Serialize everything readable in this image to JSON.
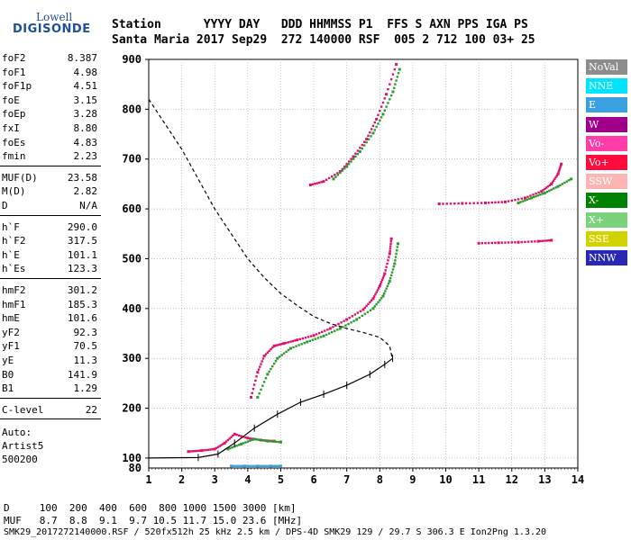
{
  "logo": {
    "line1": "Lowell",
    "line2": "DIGISONDE"
  },
  "header": {
    "row1": "Station      YYYY DAY   DDD HHMMSS P1  FFS S AXN PPS IGA PS",
    "row2": "Santa Maria 2017 Sep29  272 140000 RSF  005 2 712 100 03+ 25"
  },
  "params_group1": [
    {
      "key": "foF2",
      "value": "8.387"
    },
    {
      "key": "foF1",
      "value": "4.98"
    },
    {
      "key": "foF1p",
      "value": "4.51"
    },
    {
      "key": "foE",
      "value": "3.15"
    },
    {
      "key": "foEp",
      "value": "3.28"
    },
    {
      "key": "fxI",
      "value": "8.80"
    },
    {
      "key": "foEs",
      "value": "4.83"
    },
    {
      "key": "fmin",
      "value": "2.23"
    }
  ],
  "params_group2": [
    {
      "key": "MUF(D)",
      "value": "23.58"
    },
    {
      "key": "M(D)",
      "value": "2.82"
    },
    {
      "key": "D",
      "value": "N/A"
    }
  ],
  "params_group3": [
    {
      "key": "h`F",
      "value": "290.0"
    },
    {
      "key": "h`F2",
      "value": "317.5"
    },
    {
      "key": "h`E",
      "value": "101.1"
    },
    {
      "key": "h`Es",
      "value": "123.3"
    }
  ],
  "params_group4": [
    {
      "key": "hmF2",
      "value": "301.2"
    },
    {
      "key": "hmF1",
      "value": "185.3"
    },
    {
      "key": "hmE",
      "value": "101.6"
    },
    {
      "key": "yF2",
      "value": "92.3"
    },
    {
      "key": "yF1",
      "value": "70.5"
    },
    {
      "key": "yE",
      "value": "11.3"
    },
    {
      "key": "B0",
      "value": "141.9"
    },
    {
      "key": "B1",
      "value": "1.29"
    }
  ],
  "params_group5": [
    {
      "key": "C-level",
      "value": "22"
    }
  ],
  "auto": {
    "line1": "Auto:",
    "line2": "Artist5",
    "line3": "500200"
  },
  "legend": [
    {
      "label": "NoVal",
      "color": "#8c8c8c"
    },
    {
      "label": "NNE",
      "color": "#00e4ff"
    },
    {
      "label": "E",
      "color": "#3aa0e0"
    },
    {
      "label": "W",
      "color": "#a0008c"
    },
    {
      "label": "Vo-",
      "color": "#ff3ca8"
    },
    {
      "label": "Vo+",
      "color": "#ff0a3c"
    },
    {
      "label": "SSW",
      "color": "#ffb4b4"
    },
    {
      "label": "X-",
      "color": "#008200"
    },
    {
      "label": "X+",
      "color": "#7ad27a"
    },
    {
      "label": "SSE",
      "color": "#d2d200"
    },
    {
      "label": "NNW",
      "color": "#2828b4"
    }
  ],
  "bottom": {
    "row_d": "D     100  200  400  600  800 1000 1500 3000 [km]",
    "row_muf": "MUF   8.7  8.8  9.1  9.7 10.5 11.7 15.0 23.6 [MHz]",
    "footer": "SMK29_2017272140000.RSF / 520fx512h 25 kHz 2.5 km / DPS-4D SMK29 129 / 29.7 S 306.3 E Ion2Png 1.3.20"
  },
  "chart_data": {
    "type": "scatter",
    "title": "",
    "xlabel": "",
    "ylabel": "",
    "xlim": [
      1,
      14
    ],
    "ylim": [
      80,
      900
    ],
    "x_ticks": [
      1,
      2,
      3,
      4,
      5,
      6,
      7,
      8,
      9,
      10,
      11,
      12,
      13,
      14
    ],
    "y_ticks": [
      100,
      200,
      300,
      400,
      500,
      600,
      700,
      800,
      900
    ],
    "grid": true,
    "series": [
      {
        "key": "f_layer_o",
        "color": "#e0106a",
        "x": [
          4.1,
          4.3,
          4.5,
          4.8,
          5.1,
          5.5,
          6.0,
          6.5,
          7.0,
          7.5,
          7.8,
          8.0,
          8.15,
          8.3,
          8.35
        ],
        "y": [
          222,
          272,
          305,
          325,
          330,
          337,
          346,
          360,
          378,
          398,
          420,
          445,
          470,
          510,
          540
        ]
      },
      {
        "key": "f_layer_x",
        "color": "#2e9a2e",
        "x": [
          4.3,
          4.6,
          4.9,
          5.3,
          5.8,
          6.3,
          6.8,
          7.3,
          7.8,
          8.1,
          8.3,
          8.45,
          8.55
        ],
        "y": [
          222,
          268,
          300,
          320,
          333,
          345,
          360,
          378,
          400,
          425,
          455,
          490,
          530
        ]
      },
      {
        "key": "multi_o",
        "color": "#e0106a",
        "x": [
          5.9,
          6.3,
          6.8,
          7.2,
          7.6,
          7.9,
          8.2,
          8.5
        ],
        "y": [
          648,
          655,
          675,
          705,
          740,
          780,
          830,
          890
        ]
      },
      {
        "key": "multi_x",
        "color": "#2e9a2e",
        "x": [
          6.6,
          7.0,
          7.4,
          7.8,
          8.1,
          8.4,
          8.6
        ],
        "y": [
          660,
          685,
          715,
          752,
          790,
          835,
          880
        ]
      },
      {
        "key": "es_o",
        "color": "#e0106a",
        "x": [
          2.2,
          2.6,
          3.0,
          3.3,
          3.6,
          4.0,
          4.4,
          4.8
        ],
        "y": [
          113,
          115,
          118,
          130,
          148,
          140,
          136,
          134
        ]
      },
      {
        "key": "es_x",
        "color": "#2e9a2e",
        "x": [
          3.4,
          3.8,
          4.2,
          4.6,
          5.0
        ],
        "y": [
          118,
          128,
          138,
          134,
          132
        ]
      },
      {
        "key": "oblique_o",
        "color": "#e0106a",
        "x": [
          9.8,
          10.5,
          11.2,
          11.8,
          12.4,
          12.9,
          13.2,
          13.4,
          13.5
        ],
        "y": [
          610,
          611,
          612,
          614,
          622,
          635,
          650,
          670,
          690
        ]
      },
      {
        "key": "oblique_x",
        "color": "#2e9a2e",
        "x": [
          12.2,
          12.6,
          13.0,
          13.4,
          13.8
        ],
        "y": [
          612,
          622,
          632,
          645,
          660
        ]
      },
      {
        "key": "oblique_low",
        "color": "#e0106a",
        "x": [
          11.0,
          11.6,
          12.2,
          12.8,
          13.2
        ],
        "y": [
          531,
          532,
          533,
          535,
          537
        ]
      },
      {
        "key": "e_layer_w",
        "color": "#3aa0e0",
        "x": [
          3.5,
          3.9,
          4.3,
          4.7,
          5.0
        ],
        "y": [
          84,
          84,
          84,
          84,
          84
        ]
      }
    ],
    "profile": {
      "x": [
        1.0,
        2.5,
        3.1,
        3.6,
        4.2,
        4.9,
        5.6,
        6.3,
        7.0,
        7.7,
        8.15,
        8.39
      ],
      "y": [
        100,
        101,
        108,
        130,
        160,
        188,
        212,
        228,
        246,
        268,
        288,
        300
      ]
    },
    "top_dashed": {
      "x": [
        1.0,
        1.5,
        2.0,
        2.5,
        3.0,
        3.5,
        4.0,
        4.5,
        5.0,
        5.5,
        6.0,
        6.5,
        7.0,
        7.5,
        8.0,
        8.3,
        8.38
      ],
      "y": [
        820,
        770,
        720,
        660,
        600,
        550,
        500,
        462,
        430,
        406,
        384,
        370,
        360,
        352,
        342,
        325,
        300
      ]
    }
  }
}
